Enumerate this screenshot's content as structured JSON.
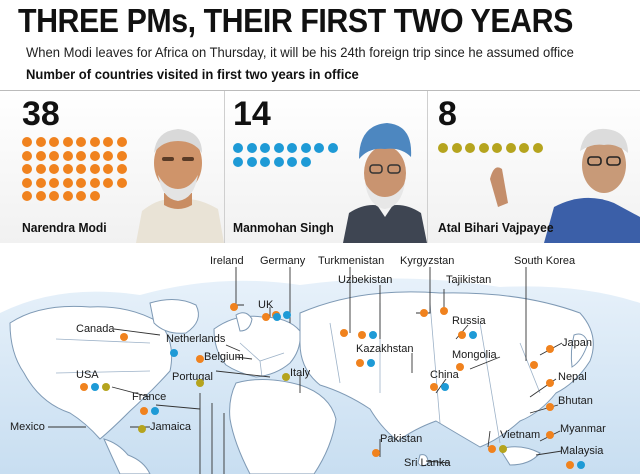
{
  "header": {
    "title": "THREE PMs, THEIR FIRST TWO YEARS",
    "subtitle": "When Modi leaves for Africa on Thursday, it will be his 24th foreign trip since he assumed office",
    "metric_label": "Number of countries visited in first two years in office"
  },
  "colors": {
    "modi": "#f0821e",
    "singh": "#1e9ad6",
    "vajpayee": "#b5a41e"
  },
  "chart_data": {
    "type": "table",
    "title": "THREE PMs, THEIR FIRST TWO YEARS",
    "ylabel": "Number of countries visited in first two years in office",
    "categories": [
      "Narendra Modi",
      "Manmohan Singh",
      "Atal Bihari Vajpayee"
    ],
    "values": [
      38,
      14,
      8
    ],
    "countries": [
      {
        "name": "Ireland",
        "visited_by": [
          "modi"
        ]
      },
      {
        "name": "Germany",
        "visited_by": [
          "modi",
          "singh"
        ]
      },
      {
        "name": "Turkmenistan",
        "visited_by": [
          "modi"
        ]
      },
      {
        "name": "Kyrgyzstan",
        "visited_by": [
          "modi"
        ]
      },
      {
        "name": "South Korea",
        "visited_by": [
          "modi"
        ]
      },
      {
        "name": "Uzbekistan",
        "visited_by": [
          "modi",
          "singh"
        ]
      },
      {
        "name": "Tajikistan",
        "visited_by": [
          "modi"
        ]
      },
      {
        "name": "UK",
        "visited_by": [
          "modi",
          "singh"
        ]
      },
      {
        "name": "Russia",
        "visited_by": [
          "modi",
          "singh"
        ]
      },
      {
        "name": "Canada",
        "visited_by": [
          "modi"
        ]
      },
      {
        "name": "Netherlands",
        "visited_by": [
          "singh"
        ]
      },
      {
        "name": "Belgium",
        "visited_by": [
          "modi"
        ]
      },
      {
        "name": "Kazakhstan",
        "visited_by": [
          "modi",
          "singh"
        ]
      },
      {
        "name": "Mongolia",
        "visited_by": [
          "modi"
        ]
      },
      {
        "name": "Japan",
        "visited_by": [
          "modi"
        ]
      },
      {
        "name": "USA",
        "visited_by": [
          "modi",
          "singh",
          "vajpayee"
        ]
      },
      {
        "name": "Portugal",
        "visited_by": [
          "vajpayee"
        ]
      },
      {
        "name": "Italy",
        "visited_by": [
          "vajpayee"
        ]
      },
      {
        "name": "China",
        "visited_by": [
          "modi",
          "singh"
        ]
      },
      {
        "name": "Nepal",
        "visited_by": [
          "modi"
        ]
      },
      {
        "name": "France",
        "visited_by": [
          "modi",
          "singh"
        ]
      },
      {
        "name": "Bhutan",
        "visited_by": [
          "modi"
        ]
      },
      {
        "name": "Mexico",
        "visited_by": [
          "modi"
        ]
      },
      {
        "name": "Jamaica",
        "visited_by": [
          "vajpayee"
        ]
      },
      {
        "name": "Myanmar",
        "visited_by": [
          "modi"
        ]
      },
      {
        "name": "Pakistan",
        "visited_by": [
          "modi"
        ]
      },
      {
        "name": "Vietnam",
        "visited_by": [
          "modi",
          "vajpayee"
        ]
      },
      {
        "name": "Sri Lanka",
        "visited_by": [
          "modi"
        ]
      },
      {
        "name": "Malaysia",
        "visited_by": [
          "modi",
          "singh"
        ]
      }
    ]
  }
}
